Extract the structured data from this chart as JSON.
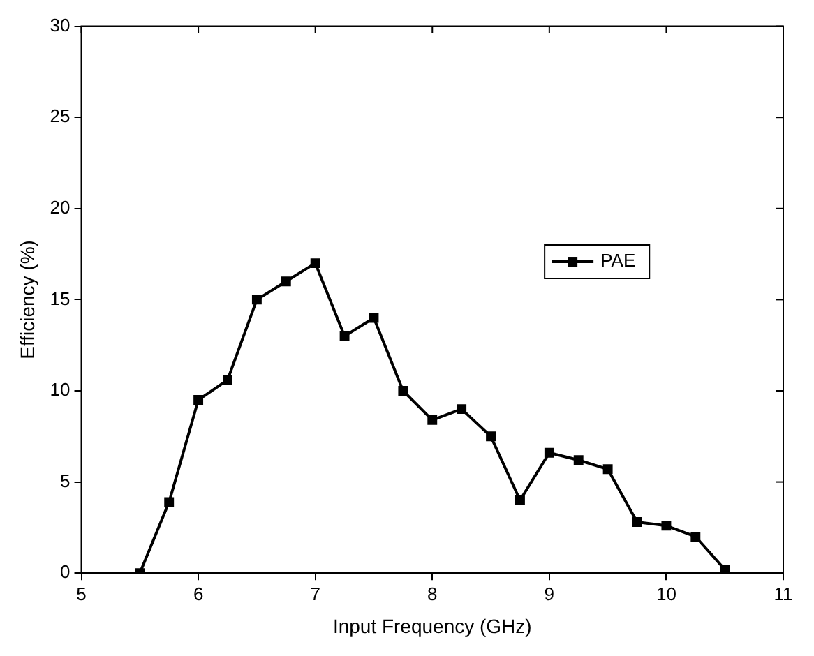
{
  "chart_data": {
    "type": "line",
    "xlabel": "Input Frequency (GHz)",
    "ylabel": "Efficiency (%)",
    "x": [
      5.5,
      5.75,
      6,
      6.25,
      6.5,
      6.75,
      7,
      7.25,
      7.5,
      7.75,
      8,
      8.25,
      8.5,
      8.75,
      9,
      9.25,
      9.5,
      9.75,
      10,
      10.25,
      10.5
    ],
    "series": [
      {
        "name": "PAE",
        "color": "#000000",
        "values": [
          0,
          3.9,
          9.5,
          10.6,
          15,
          16,
          17,
          13,
          14,
          10,
          8.4,
          9,
          7.5,
          4,
          6.6,
          6.2,
          5.7,
          2.8,
          2.6,
          2,
          0.2
        ]
      }
    ],
    "xlim": [
      5,
      11
    ],
    "xticks": [
      5,
      6,
      7,
      8,
      9,
      10,
      11
    ],
    "ylim": [
      0,
      30
    ],
    "yticks": [
      0,
      5,
      10,
      15,
      20,
      25,
      30
    ],
    "grid": false,
    "legend": "right",
    "marker": "square",
    "line_style": "solid"
  }
}
